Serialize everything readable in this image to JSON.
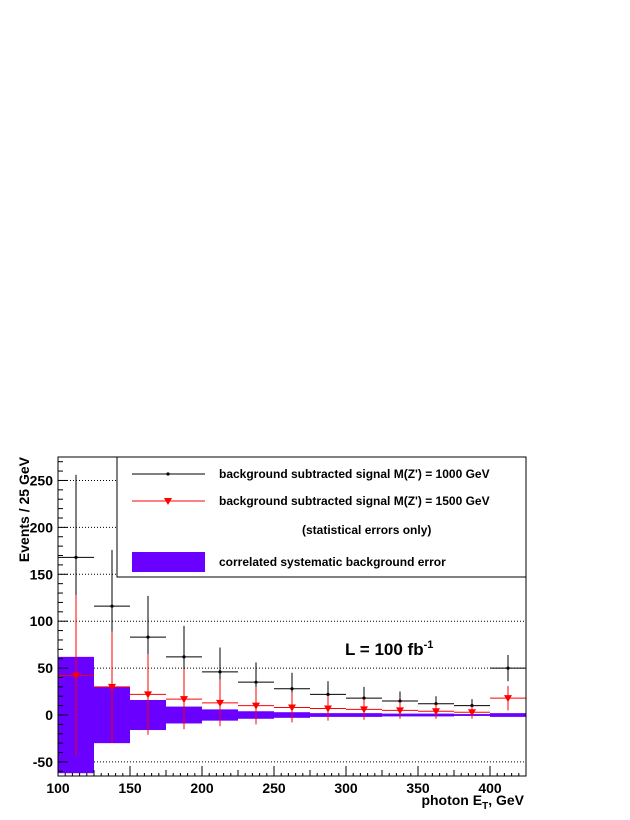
{
  "chart_data": {
    "type": "scatter",
    "xlabel_main": "photon E",
    "xlabel_sub": "T",
    "xlabel_tail": ", GeV",
    "ylabel": "Events / 25 GeV",
    "xlim": [
      100,
      425
    ],
    "ylim": [
      -65,
      275
    ],
    "x_ticks": [
      100,
      150,
      200,
      250,
      300,
      350,
      400
    ],
    "y_ticks": [
      -50,
      0,
      50,
      100,
      150,
      200,
      250
    ],
    "grid": "horizontal dotted",
    "legend_position": "top-right",
    "annotation": {
      "main": "L = 100 fb",
      "sup": "-1"
    },
    "series": [
      {
        "name": "background subtracted signal M(Z') = 1000 GeV",
        "color": "#000000",
        "marker": "dot",
        "x": [
          112.5,
          137.5,
          162.5,
          187.5,
          212.5,
          237.5,
          262.5,
          287.5,
          312.5,
          337.5,
          362.5,
          387.5,
          412.5
        ],
        "y": [
          168,
          116,
          83,
          62,
          46,
          35,
          28,
          22,
          18,
          15,
          12,
          10,
          50
        ],
        "err": [
          88,
          60,
          44,
          33,
          26,
          21,
          17,
          14,
          12,
          10,
          8,
          7,
          14
        ]
      },
      {
        "name": "background subtracted signal M(Z') = 1500 GeV",
        "color": "#ff0000",
        "marker": "triangle-down",
        "x": [
          112.5,
          137.5,
          162.5,
          187.5,
          212.5,
          237.5,
          262.5,
          287.5,
          312.5,
          337.5,
          362.5,
          387.5,
          412.5
        ],
        "y": [
          42,
          30,
          22,
          17,
          13,
          10,
          8,
          7,
          6,
          5,
          4,
          3,
          18
        ],
        "err": [
          86,
          59,
          43,
          32,
          25,
          20,
          16,
          13,
          11,
          9,
          8,
          7,
          13
        ]
      },
      {
        "name": "correlated systematic background error",
        "color": "#6a00ff",
        "style": "band",
        "x": [
          112.5,
          137.5,
          162.5,
          187.5,
          212.5,
          237.5,
          262.5,
          287.5,
          312.5,
          337.5,
          362.5,
          387.5,
          412.5
        ],
        "half_width": [
          62,
          30,
          16,
          9,
          6,
          4,
          3,
          2,
          2,
          1.5,
          1.5,
          1,
          2
        ]
      }
    ],
    "legend_note": "(statistical errors only)"
  }
}
